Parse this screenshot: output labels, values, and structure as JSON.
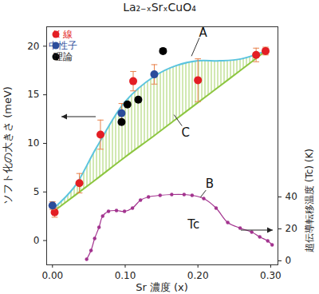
{
  "chart_data": {
    "type": "scatter",
    "title": "La₂₋ₓSrₓCuO₄",
    "x_label": "Sr 濃度 (x)",
    "y_label": "ソフト化の大きさ (meV)",
    "y2_label": "超伝導転移温度 (Tc) (K)",
    "xlim": [
      -0.008,
      0.31
    ],
    "xticks": [
      0,
      0.1,
      0.2,
      0.3
    ],
    "ylim": [
      -2.5,
      22
    ],
    "yticks": [
      0,
      5,
      10,
      15,
      20
    ],
    "y2lim": [
      -2.5,
      146.5
    ],
    "y2ticks": [
      0,
      20,
      40
    ],
    "legend": "top-left",
    "series": [
      {
        "name": "X 線",
        "type": "scatter",
        "color": "#e31e24",
        "marker": "circle",
        "x": [
          0.003,
          0.037,
          0.066,
          0.111,
          0.2,
          0.28,
          0.293
        ],
        "values": [
          2.9,
          5.9,
          10.9,
          16.4,
          16.5,
          19.1,
          19.5
        ],
        "errors": [
          0.5,
          1.0,
          1.5,
          1.0,
          2.2,
          0.7,
          0.4
        ]
      },
      {
        "name": "中性子",
        "type": "scatter",
        "color": "#2b4c9b",
        "marker": "circle",
        "x": [
          0,
          0.095,
          0.14
        ],
        "values": [
          3.6,
          13.1,
          17.1
        ],
        "errors": [
          0.4,
          1.0,
          1.0
        ]
      },
      {
        "name": "理論",
        "type": "scatter",
        "color": "#000000",
        "marker": "circle",
        "x": [
          0.095,
          0.103,
          0.118,
          0.152
        ],
        "values": [
          12.2,
          14.0,
          14.5,
          19.5
        ]
      },
      {
        "type": "line",
        "color": "#5bc4df",
        "line_style": "solid",
        "x": [
          0,
          0.03,
          0.06,
          0.1,
          0.14,
          0.17,
          0.2,
          0.23,
          0.26,
          0.293
        ],
        "values": [
          3.2,
          5.5,
          9.5,
          14.3,
          16.9,
          18.0,
          18.5,
          18.5,
          18.7,
          19.5
        ]
      },
      {
        "type": "line",
        "color": "#8cc63f",
        "line_style": "solid",
        "x": [
          0,
          0.03,
          0.06,
          0.1,
          0.14,
          0.17,
          0.2,
          0.23,
          0.26,
          0.293
        ],
        "values": [
          2.9,
          4.6,
          6.3,
          8.6,
          10.8,
          12.5,
          14.2,
          15.9,
          17.6,
          19.5
        ]
      },
      {
        "type": "line",
        "color": "#a3348f",
        "line_style": "solid",
        "marker": "circle",
        "axis": "y2",
        "x": [
          0.047,
          0.053,
          0.058,
          0.064,
          0.069,
          0.077,
          0.088,
          0.099,
          0.11,
          0.121,
          0.132,
          0.148,
          0.164,
          0.181,
          0.192,
          0.208,
          0.225,
          0.241,
          0.258,
          0.274,
          0.285,
          0.296,
          0.302
        ],
        "values": [
          1,
          6.5,
          14,
          21,
          28,
          31,
          31.5,
          31,
          33,
          38,
          40,
          41,
          41.5,
          41.5,
          41,
          39,
          33,
          24,
          20.5,
          18,
          15,
          12.5,
          10
        ]
      }
    ],
    "annotations": [
      {
        "text": "A",
        "x": 0.207,
        "y": 21.4
      },
      {
        "text": "B",
        "x": 0.216,
        "y": 5.8
      },
      {
        "text": "C",
        "x": 0.183,
        "y": 11.1
      },
      {
        "text": "Tc",
        "x": 0.194,
        "y": 1.6
      }
    ]
  }
}
